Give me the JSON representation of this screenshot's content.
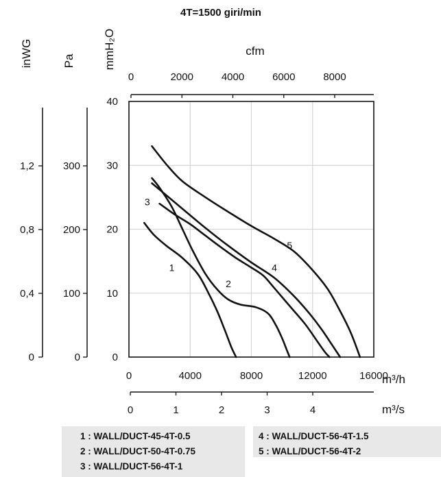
{
  "chart_data": {
    "type": "line",
    "title": "4T=1500 giri/min",
    "x_primary": {
      "unit": "m³/h",
      "range": [
        0,
        16000
      ],
      "ticks": [
        "0",
        "4000",
        "8000",
        "12000",
        "16000"
      ]
    },
    "x_secondary": {
      "unit": "m³/s",
      "ticks": [
        "0",
        "1",
        "2",
        "3",
        "4"
      ]
    },
    "x_top": {
      "unit": "cfm",
      "ticks": [
        "0",
        "2000",
        "4000",
        "6000",
        "8000"
      ]
    },
    "y_primary": {
      "unit": "mmH₂O",
      "range": [
        0,
        40
      ],
      "ticks": [
        "0",
        "10",
        "20",
        "30",
        "40"
      ]
    },
    "y_pa": {
      "unit": "Pa",
      "ticks": [
        "0",
        "100",
        "200",
        "300"
      ]
    },
    "y_inwg": {
      "unit": "inWG",
      "ticks": [
        "0",
        "0,4",
        "0,8",
        "1,2"
      ]
    },
    "series": [
      {
        "name": "1",
        "x": [
          1000,
          1600,
          2400,
          3500,
          4500,
          5200,
          5800,
          6300,
          6700,
          7000
        ],
        "y": [
          21,
          19.2,
          17.5,
          15.5,
          13,
          10,
          7,
          4,
          1.5,
          0
        ],
        "label_at": [
          2800,
          14
        ]
      },
      {
        "name": "2",
        "x": [
          1500,
          2000,
          2800,
          3500,
          4200,
          5000,
          5800,
          6500,
          7300,
          8300,
          9100,
          9600,
          10000,
          10300,
          10500
        ],
        "y": [
          28,
          26.5,
          23.5,
          20,
          16.5,
          13,
          10.5,
          9,
          8.2,
          7.8,
          6.8,
          5,
          3,
          1.2,
          0
        ],
        "label_at": [
          6500,
          11.5
        ]
      },
      {
        "name": "3",
        "x": [
          2000,
          3000,
          4000,
          5000,
          6000,
          7000,
          8000,
          8800,
          9500,
          10500,
          11500,
          12300,
          12800,
          13100
        ],
        "y": [
          24,
          22.3,
          20.8,
          19,
          17.2,
          15.5,
          14,
          12.7,
          10.8,
          8,
          5.2,
          2.5,
          0.8,
          0
        ],
        "label_at": [
          1200,
          24.3
        ]
      },
      {
        "name": "4",
        "x": [
          1500,
          2500,
          3500,
          5000,
          6500,
          8000,
          9500,
          10800,
          11800,
          12600,
          13300,
          13800
        ],
        "y": [
          27.2,
          25.2,
          23.2,
          20.2,
          17.4,
          14.8,
          12.4,
          9.5,
          6.8,
          4.3,
          1.8,
          0
        ],
        "label_at": [
          9500,
          14
        ]
      },
      {
        "name": "5",
        "x": [
          1500,
          2500,
          3500,
          5000,
          6500,
          8000,
          9500,
          10800,
          12000,
          13000,
          13800,
          14500,
          15100
        ],
        "y": [
          33,
          30,
          27.5,
          25,
          22.7,
          20.5,
          18.5,
          16.5,
          13.6,
          10.6,
          7.2,
          3.8,
          0
        ],
        "label_at": [
          10500,
          17.5
        ]
      }
    ]
  },
  "legend": {
    "left": [
      "1 : WALL/DUCT-45-4T-0.5",
      "2 : WALL/DUCT-50-4T-0.75",
      "3 : WALL/DUCT-56-4T-1"
    ],
    "right": [
      "4 : WALL/DUCT-56-4T-1.5",
      "5 : WALL/DUCT-56-4T-2"
    ]
  }
}
